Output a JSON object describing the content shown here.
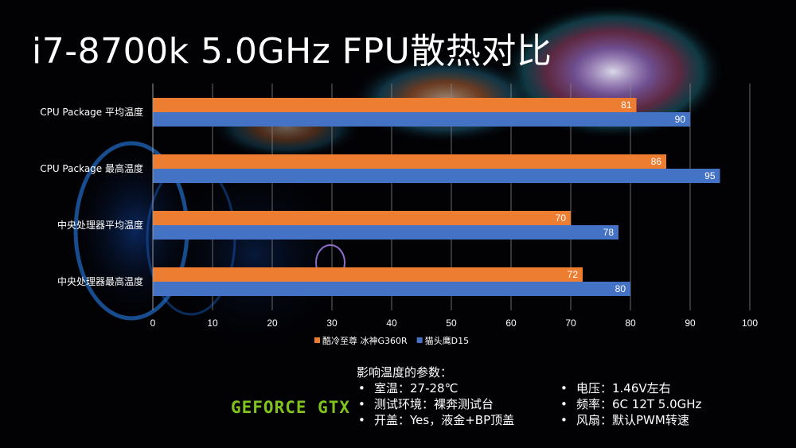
{
  "title": "i7-8700k 5.0GHz FPU散热对比",
  "chart_data": {
    "type": "bar",
    "orientation": "horizontal",
    "categories": [
      "CPU Package 平均温度",
      "CPU Package 最高温度",
      "中央处理器平均温度",
      "中央处理器最高温度"
    ],
    "series": [
      {
        "name": "酷冷至尊 冰神G360R",
        "color": "#ed7d31",
        "values": [
          81,
          86,
          70,
          72
        ]
      },
      {
        "name": "猫头鹰D15",
        "color": "#4472c4",
        "values": [
          90,
          95,
          78,
          80
        ]
      }
    ],
    "xlim": [
      0,
      100
    ],
    "xticks": [
      "0",
      "10",
      "20",
      "30",
      "40",
      "50",
      "60",
      "70",
      "80",
      "90",
      "100"
    ],
    "grid": true,
    "legend": "bottom",
    "data_labels": true
  },
  "params": {
    "title": "影响温度的参数：",
    "bullet": "•",
    "left": [
      "室温：27-28℃",
      "测试环境：裸奔测试台",
      "开盖：Yes，液金+BP顶盖"
    ],
    "right": [
      "电压：1.46V左右",
      "频率：6C 12T 5.0GHz",
      "风扇：默认PWM转速"
    ]
  },
  "logo_text": "GEFORCE GTX"
}
